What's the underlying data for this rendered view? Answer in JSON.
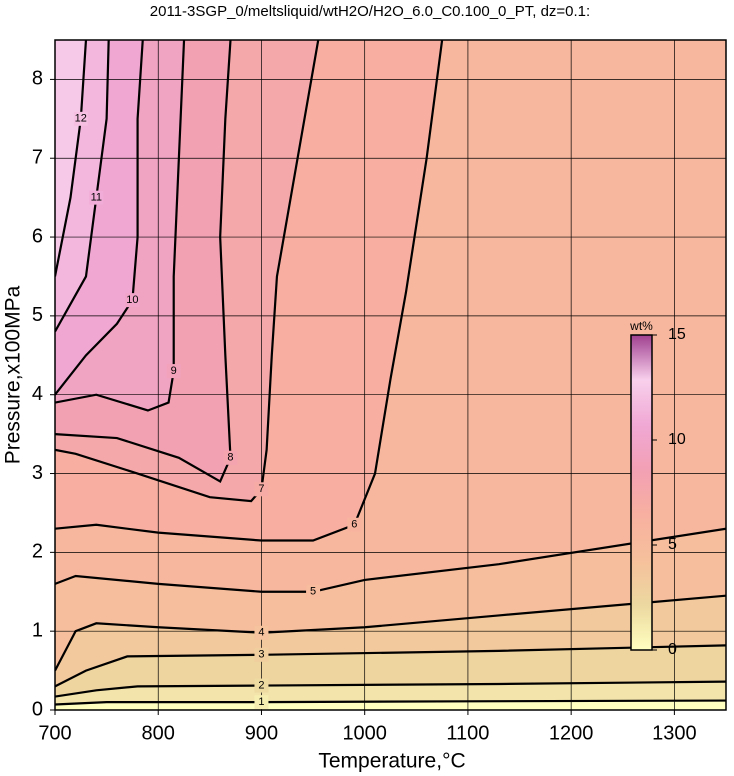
{
  "chart_data": {
    "type": "contour",
    "title": "2011-3SGP_0/meltsliquid/wtH2O/H2O_6.0_C0.100_0_PT, dz=0.1:",
    "x_label": "Temperature,°C",
    "y_label": "Pressure,x100MPa",
    "xlim": [
      700,
      1350
    ],
    "ylim": [
      0,
      8.5
    ],
    "xticks": [
      700,
      800,
      900,
      1000,
      1100,
      1200,
      1300
    ],
    "yticks": [
      0,
      1,
      2,
      3,
      4,
      5,
      6,
      7,
      8
    ],
    "grid": true,
    "line_color": "#000000",
    "colorbar": {
      "label": "wt%",
      "lim": [
        0,
        15
      ],
      "ticks": [
        0,
        5,
        10,
        15
      ],
      "colors": [
        "#ffffc0",
        "#ecd8a0",
        "#f6c09c",
        "#f8b0a0",
        "#f2a0b4",
        "#f0a8d4",
        "#f8d0ec",
        "#a04090"
      ]
    },
    "contours": [
      {
        "level": 1,
        "x": [
          700,
          750,
          800,
          900,
          1100,
          1350
        ],
        "y": [
          0.07,
          0.1,
          0.1,
          0.1,
          0.11,
          0.12
        ]
      },
      {
        "level": 2,
        "x": [
          700,
          740,
          780,
          900,
          1130,
          1350
        ],
        "y": [
          0.17,
          0.25,
          0.3,
          0.31,
          0.33,
          0.36
        ]
      },
      {
        "level": 3,
        "x": [
          700,
          730,
          770,
          900,
          1130,
          1350
        ],
        "y": [
          0.3,
          0.5,
          0.68,
          0.7,
          0.75,
          0.82
        ]
      },
      {
        "level": 4,
        "x": [
          700,
          720,
          740,
          800,
          900,
          1000,
          1130,
          1350
        ],
        "y": [
          0.5,
          1.0,
          1.1,
          1.05,
          0.98,
          1.05,
          1.2,
          1.45
        ]
      },
      {
        "level": 5,
        "x": [
          700,
          720,
          800,
          900,
          950,
          1000,
          1130,
          1350
        ],
        "y": [
          1.6,
          1.7,
          1.6,
          1.5,
          1.5,
          1.65,
          1.85,
          2.3
        ]
      },
      {
        "level": 6,
        "x": [
          700,
          740,
          800,
          900,
          950,
          990,
          1010,
          1025,
          1040,
          1060,
          1075
        ],
        "y": [
          2.3,
          2.35,
          2.25,
          2.15,
          2.15,
          2.35,
          3.0,
          4.2,
          5.3,
          7.0,
          8.5
        ]
      },
      {
        "level": 7,
        "x": [
          700,
          720,
          780,
          850,
          890,
          900,
          905,
          910,
          915,
          935,
          955
        ],
        "y": [
          3.3,
          3.25,
          3.0,
          2.7,
          2.65,
          2.8,
          3.3,
          4.5,
          5.5,
          7.0,
          8.5
        ]
      },
      {
        "level": 8,
        "x": [
          700,
          760,
          820,
          860,
          870,
          865,
          860,
          865,
          870
        ],
        "y": [
          3.5,
          3.45,
          3.2,
          2.9,
          3.2,
          4.5,
          6.0,
          7.5,
          8.5
        ]
      },
      {
        "level": 9,
        "x": [
          700,
          740,
          790,
          810,
          815,
          815,
          820,
          825
        ],
        "y": [
          3.9,
          4.0,
          3.8,
          3.9,
          4.3,
          5.5,
          7.0,
          8.5
        ]
      },
      {
        "level": 10,
        "x": [
          700,
          730,
          760,
          775,
          780,
          780,
          785
        ],
        "y": [
          4.0,
          4.5,
          4.9,
          5.2,
          6.0,
          7.5,
          8.5
        ]
      },
      {
        "level": 11,
        "x": [
          700,
          730,
          740,
          750,
          752
        ],
        "y": [
          4.8,
          5.5,
          6.5,
          7.5,
          8.5
        ]
      },
      {
        "level": 12,
        "x": [
          700,
          715,
          725,
          730
        ],
        "y": [
          5.5,
          6.5,
          7.5,
          8.5
        ]
      }
    ]
  }
}
